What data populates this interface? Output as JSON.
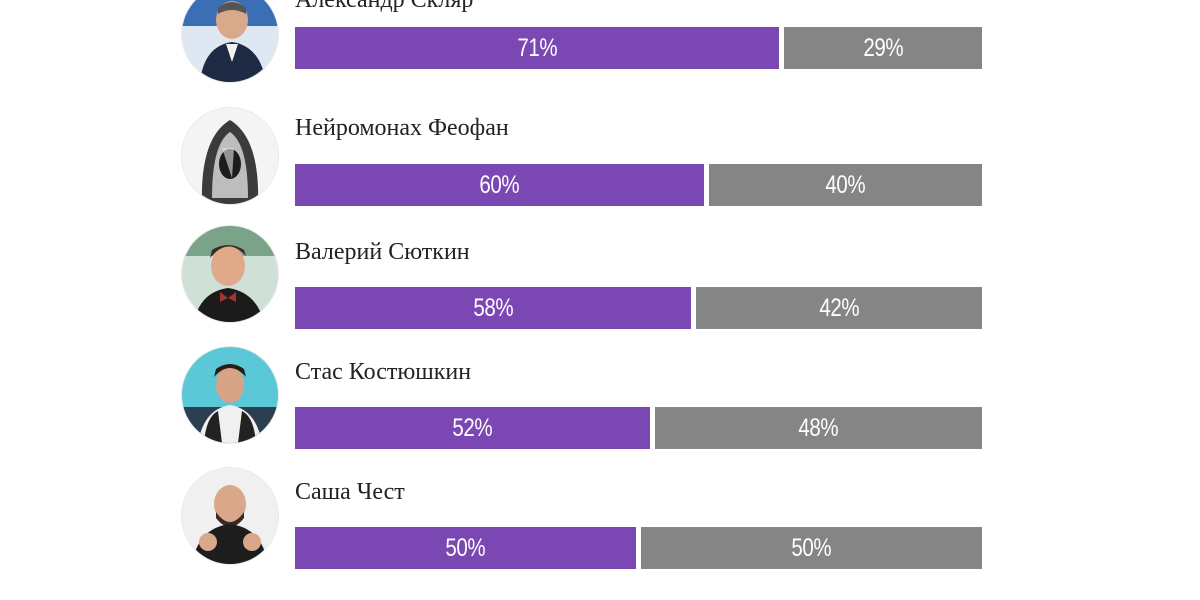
{
  "chart_data": {
    "type": "bar",
    "stacked": true,
    "orientation": "horizontal",
    "categories": [
      "Александр Скляр",
      "Нейромонах Феофан",
      "Валерий Сюткин",
      "Стас Костюшкин",
      "Саша Чест"
    ],
    "series": [
      {
        "color": "#7b47b3",
        "values": [
          71,
          60,
          58,
          52,
          50
        ]
      },
      {
        "color": "#858585",
        "values": [
          29,
          40,
          42,
          48,
          50
        ]
      }
    ],
    "value_labels": [
      [
        "71%",
        "29%"
      ],
      [
        "60%",
        "40%"
      ],
      [
        "58%",
        "42%"
      ],
      [
        "52%",
        "48%"
      ],
      [
        "50%",
        "50%"
      ]
    ],
    "xlim": [
      0,
      100
    ],
    "grid": false
  },
  "rows": [
    {
      "name": "Александр Скляр",
      "avatar_icon": "person-photo-icon"
    },
    {
      "name": "Нейромонах Феофан",
      "avatar_icon": "hooded-figure-photo-icon"
    },
    {
      "name": "Валерий Сюткин",
      "avatar_icon": "person-photo-icon"
    },
    {
      "name": "Стас Костюшкин",
      "avatar_icon": "person-photo-icon"
    },
    {
      "name": "Саша Чест",
      "avatar_icon": "person-photo-icon"
    }
  ]
}
